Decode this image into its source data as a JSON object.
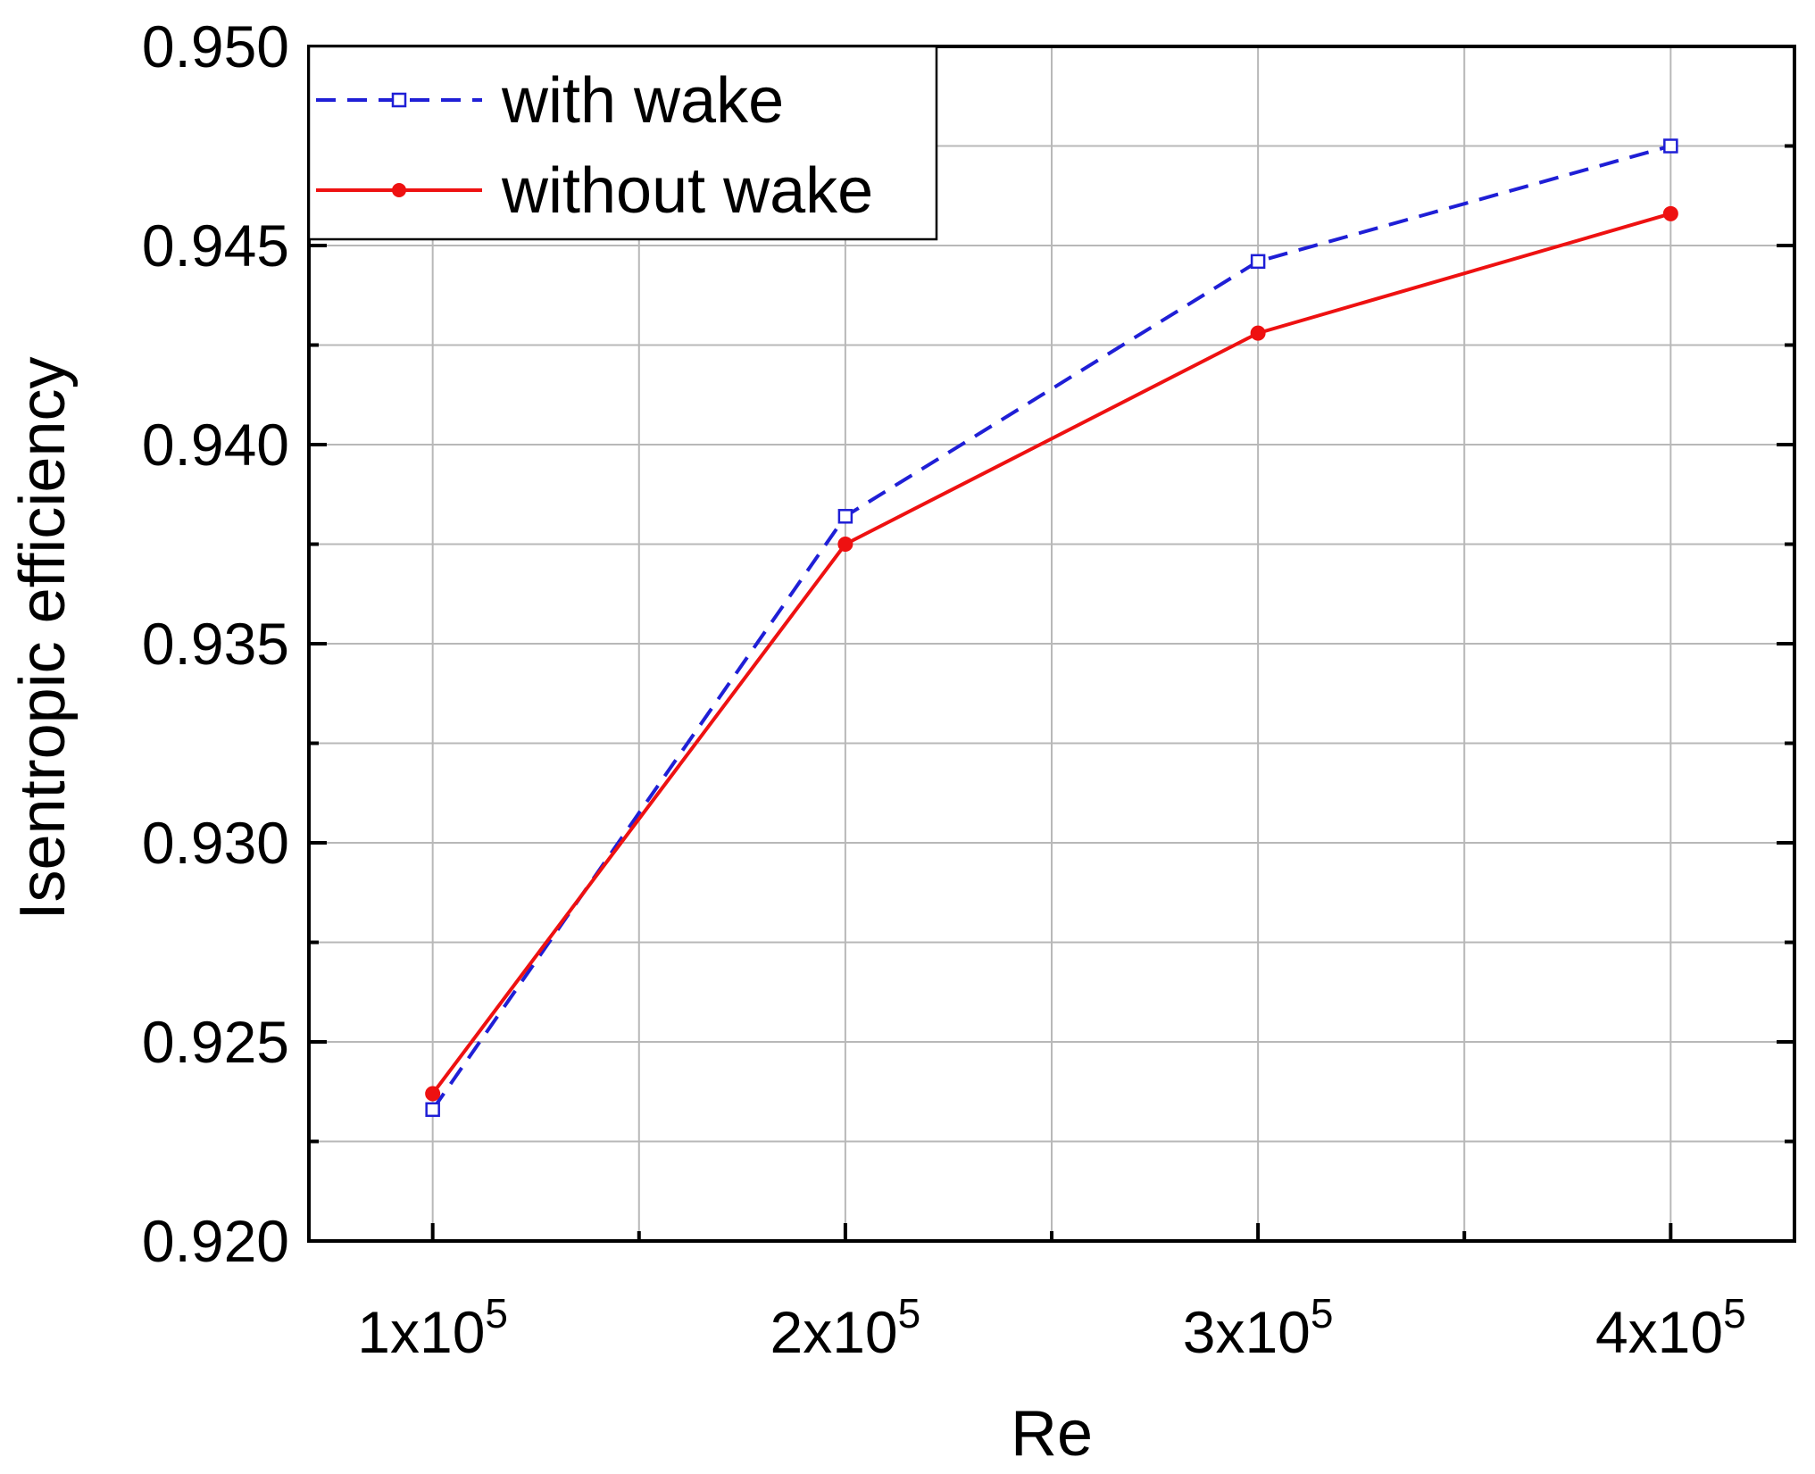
{
  "chart_data": {
    "type": "line",
    "title": "",
    "xlabel": "Re",
    "ylabel": "Isentropic efficiency",
    "x": [
      100000,
      200000,
      300000,
      400000
    ],
    "x_tick_labels": [
      {
        "base": "1x10",
        "exp": "5"
      },
      {
        "base": "2x10",
        "exp": "5"
      },
      {
        "base": "3x10",
        "exp": "5"
      },
      {
        "base": "4x10",
        "exp": "5"
      }
    ],
    "xlim": [
      70000,
      430000
    ],
    "ylim": [
      0.92,
      0.95
    ],
    "y_ticks": [
      "0.920",
      "0.925",
      "0.930",
      "0.935",
      "0.940",
      "0.945",
      "0.950"
    ],
    "grid": true,
    "legend_position": "top-left",
    "series": [
      {
        "name": "with wake",
        "values": [
          0.9233,
          0.9382,
          0.9446,
          0.9475
        ],
        "color": "#1f1fd6",
        "line_style": "dashed",
        "marker": "open-square"
      },
      {
        "name": "without wake",
        "values": [
          0.9237,
          0.9375,
          0.9428,
          0.9458
        ],
        "color": "#ee1111",
        "line_style": "solid",
        "marker": "filled-circle"
      }
    ]
  }
}
